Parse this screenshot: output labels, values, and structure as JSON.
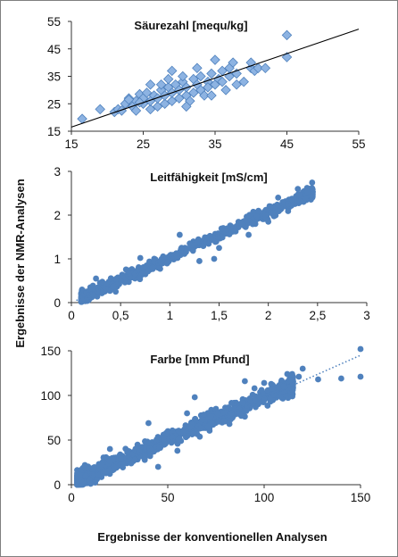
{
  "figure": {
    "ylabel": "Ergebnisse der NMR-Analysen",
    "xlabel": "Ergebnisse der konventionellen Analysen"
  },
  "chart_data": [
    {
      "type": "scatter",
      "title": "Säurezahl [mequ/kg]",
      "marker": "diamond",
      "color": "#8db3e2",
      "stroke": "#4f81bd",
      "xlim": [
        15,
        55
      ],
      "ylim": [
        15,
        55
      ],
      "xticks": [
        "15",
        "25",
        "35",
        "45",
        "55"
      ],
      "yticks": [
        "15",
        "25",
        "35",
        "45",
        "55"
      ],
      "trendline": {
        "style": "solid",
        "color": "#000000",
        "x": [
          15,
          55
        ],
        "y": [
          16.5,
          52.2
        ]
      },
      "points": [
        [
          16.5,
          19.5
        ],
        [
          19,
          23
        ],
        [
          21,
          22
        ],
        [
          21.5,
          23
        ],
        [
          22,
          22.5
        ],
        [
          22.5,
          25
        ],
        [
          23,
          27
        ],
        [
          23.5,
          24
        ],
        [
          24,
          22.5
        ],
        [
          24,
          26
        ],
        [
          24.5,
          28.5
        ],
        [
          25,
          25
        ],
        [
          25,
          27
        ],
        [
          25.5,
          29
        ],
        [
          26,
          23
        ],
        [
          26,
          26
        ],
        [
          26.5,
          28
        ],
        [
          27,
          24
        ],
        [
          27,
          27
        ],
        [
          27.5,
          30
        ],
        [
          28,
          25
        ],
        [
          28,
          28
        ],
        [
          28.5,
          31
        ],
        [
          29,
          26
        ],
        [
          29,
          29
        ],
        [
          29.5,
          32
        ],
        [
          30,
          27
        ],
        [
          30,
          30
        ],
        [
          30.5,
          33
        ],
        [
          31,
          28
        ],
        [
          31,
          31
        ],
        [
          31.5,
          26
        ],
        [
          32,
          29
        ],
        [
          32,
          34
        ],
        [
          32.5,
          32
        ],
        [
          33,
          30
        ],
        [
          33,
          35
        ],
        [
          33.5,
          28
        ],
        [
          34,
          33
        ],
        [
          34,
          31
        ],
        [
          34.5,
          36
        ],
        [
          35,
          32
        ],
        [
          35,
          41
        ],
        [
          35.5,
          34
        ],
        [
          36,
          33
        ],
        [
          36,
          37
        ],
        [
          36.5,
          30
        ],
        [
          37,
          35
        ],
        [
          37,
          38
        ],
        [
          37.5,
          40
        ],
        [
          38,
          36
        ],
        [
          39,
          33
        ],
        [
          40,
          38
        ],
        [
          40,
          40
        ],
        [
          40.5,
          37
        ],
        [
          41,
          38
        ],
        [
          42,
          38
        ],
        [
          45,
          50
        ],
        [
          45,
          42
        ],
        [
          29,
          37
        ],
        [
          30.5,
          35
        ],
        [
          32.5,
          38
        ],
        [
          26,
          32
        ],
        [
          28.5,
          34
        ],
        [
          34.5,
          28
        ],
        [
          31,
          24
        ],
        [
          27.5,
          32
        ],
        [
          24.5,
          25.5
        ],
        [
          23,
          26.5
        ],
        [
          38,
          32
        ]
      ]
    },
    {
      "type": "scatter",
      "title": "Leitfähigkeit [mS/cm]",
      "marker": "circle",
      "color": "#4f81bd",
      "xlim": [
        0,
        3
      ],
      "ylim": [
        0,
        3
      ],
      "xticks": [
        "0",
        "0,5",
        "1",
        "1,5",
        "2",
        "2,5",
        "3"
      ],
      "yticks": [
        "0",
        "1",
        "2",
        "3"
      ],
      "trendline": {
        "style": "dotted",
        "color": "#4f81bd",
        "x": [
          0.05,
          2.45
        ],
        "y": [
          0.05,
          2.52
        ]
      },
      "seed": 7,
      "n_points": 700,
      "x_range": [
        0.1,
        2.45
      ],
      "slope": 1.03,
      "intercept": 0.0,
      "noise": 0.06,
      "outliers": [
        [
          0.7,
          1.02
        ],
        [
          1.1,
          1.55
        ],
        [
          1.45,
          1.0
        ],
        [
          1.5,
          1.25
        ],
        [
          2.3,
          2.6
        ],
        [
          2.1,
          2.4
        ],
        [
          1.8,
          1.55
        ],
        [
          1.9,
          2.1
        ],
        [
          2.2,
          2.25
        ],
        [
          2.0,
          1.85
        ],
        [
          1.3,
          0.95
        ],
        [
          0.45,
          0.25
        ],
        [
          0.25,
          0.55
        ]
      ]
    },
    {
      "type": "scatter",
      "title": "Farbe [mm Pfund]",
      "marker": "circle",
      "color": "#4f81bd",
      "xlim": [
        0,
        150
      ],
      "ylim": [
        0,
        150
      ],
      "xticks": [
        "0",
        "50",
        "100",
        "150"
      ],
      "yticks": [
        "0",
        "50",
        "100",
        "150"
      ],
      "trendline": {
        "style": "dotted",
        "color": "#4f81bd",
        "x": [
          5,
          150
        ],
        "y": [
          6,
          145
        ]
      },
      "seed": 13,
      "n_points": 1100,
      "x_range": [
        3,
        115
      ],
      "slope": 0.96,
      "intercept": 2,
      "noise": 4.5,
      "outliers": [
        [
          150,
          152
        ],
        [
          150,
          121
        ],
        [
          140,
          119
        ],
        [
          128,
          118
        ],
        [
          120,
          130
        ],
        [
          118,
          121
        ],
        [
          112,
          124
        ],
        [
          110,
          110
        ],
        [
          105,
          101
        ],
        [
          100,
          114
        ],
        [
          95,
          108
        ],
        [
          90,
          116
        ],
        [
          83,
          80
        ],
        [
          82,
          68
        ],
        [
          75,
          85
        ],
        [
          40,
          69
        ],
        [
          30,
          30
        ],
        [
          10,
          1
        ],
        [
          7,
          22
        ],
        [
          5,
          5
        ],
        [
          20,
          40
        ],
        [
          60,
          80
        ],
        [
          45,
          20
        ],
        [
          55,
          38
        ],
        [
          64,
          98
        ]
      ]
    }
  ]
}
